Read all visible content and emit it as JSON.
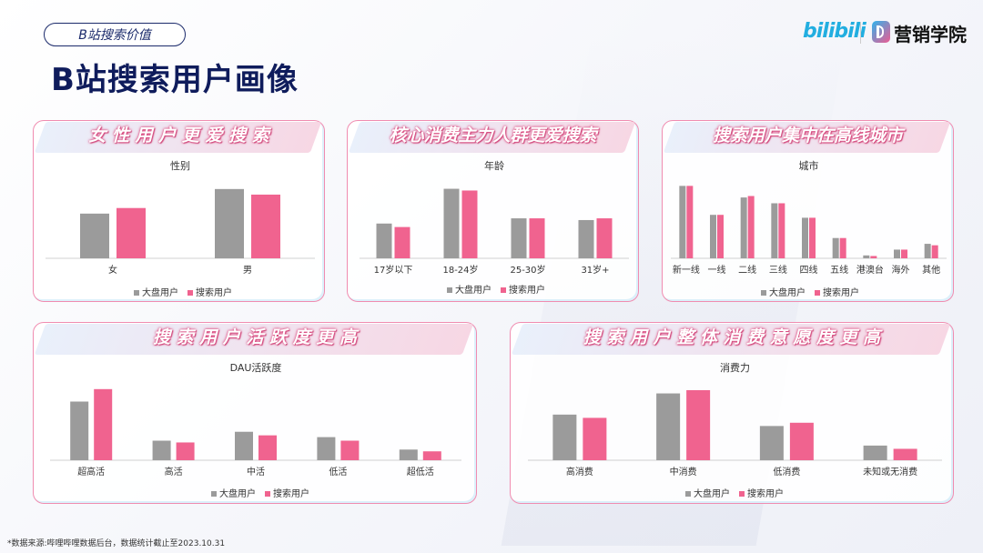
{
  "header": {
    "tag": "B站搜索价值",
    "title": "B站搜索用户画像",
    "logo_bili": "bilibili",
    "logo_text": "营销学院"
  },
  "legend": {
    "a": "大盘用户",
    "b": "搜索用户"
  },
  "colors": {
    "a": "#9b9b9b",
    "b": "#f0638f"
  },
  "footnote": "*数据来源:哔哩哔哩数据后台，数据统计截止至2023.10.31",
  "panels": [
    {
      "banner": "女 性 用 户 更 爱 搜 索"
    },
    {
      "banner": "核心消费主力人群更爱搜索"
    },
    {
      "banner": "搜索用户集中在高线城市"
    },
    {
      "banner": "搜 索 用 户 活 跃 度 更 高"
    },
    {
      "banner": "搜 索 用 户 整 体 消 费 意 愿 度 更 高"
    }
  ],
  "chart_data": [
    {
      "type": "bar",
      "title": "性别",
      "categories": [
        "女",
        "男"
      ],
      "series": [
        {
          "name": "大盘用户",
          "values": [
            40,
            62
          ]
        },
        {
          "name": "搜索用户",
          "values": [
            45,
            57
          ]
        }
      ],
      "ylim": [
        0,
        70
      ],
      "legend": "bottom"
    },
    {
      "type": "bar",
      "title": "年龄",
      "categories": [
        "17岁以下",
        "18-24岁",
        "25-30岁",
        "31岁+"
      ],
      "series": [
        {
          "name": "大盘用户",
          "values": [
            20,
            40,
            23,
            22
          ]
        },
        {
          "name": "搜索用户",
          "values": [
            18,
            39,
            23,
            23
          ]
        }
      ],
      "ylim": [
        0,
        45
      ],
      "legend": "bottom"
    },
    {
      "type": "bar",
      "title": "城市",
      "categories": [
        "新一线",
        "一线",
        "二线",
        "三线",
        "四线",
        "五线",
        "港澳台",
        "海外",
        "其他"
      ],
      "series": [
        {
          "name": "大盘用户",
          "values": [
            25,
            15,
            21,
            19,
            14,
            7,
            1,
            3,
            5
          ]
        },
        {
          "name": "搜索用户",
          "values": [
            25,
            15,
            21.5,
            19,
            14,
            7,
            0.8,
            3,
            4.5
          ]
        }
      ],
      "ylim": [
        0,
        27
      ],
      "legend": "bottom"
    },
    {
      "type": "bar",
      "title": "DAU活跃度",
      "categories": [
        "超高活",
        "高活",
        "中活",
        "低活",
        "超低活"
      ],
      "series": [
        {
          "name": "大盘用户",
          "values": [
            33,
            11,
            16,
            13,
            6
          ]
        },
        {
          "name": "搜索用户",
          "values": [
            40,
            10,
            14,
            11,
            5
          ]
        }
      ],
      "ylim": [
        0,
        44
      ],
      "legend": "bottom"
    },
    {
      "type": "bar",
      "title": "消费力",
      "categories": [
        "高消费",
        "中消费",
        "低消费",
        "未知或无消费"
      ],
      "series": [
        {
          "name": "大盘用户",
          "values": [
            28,
            41,
            21,
            9
          ]
        },
        {
          "name": "搜索用户",
          "values": [
            26,
            43,
            23,
            7
          ]
        }
      ],
      "ylim": [
        0,
        48
      ],
      "legend": "bottom"
    }
  ]
}
